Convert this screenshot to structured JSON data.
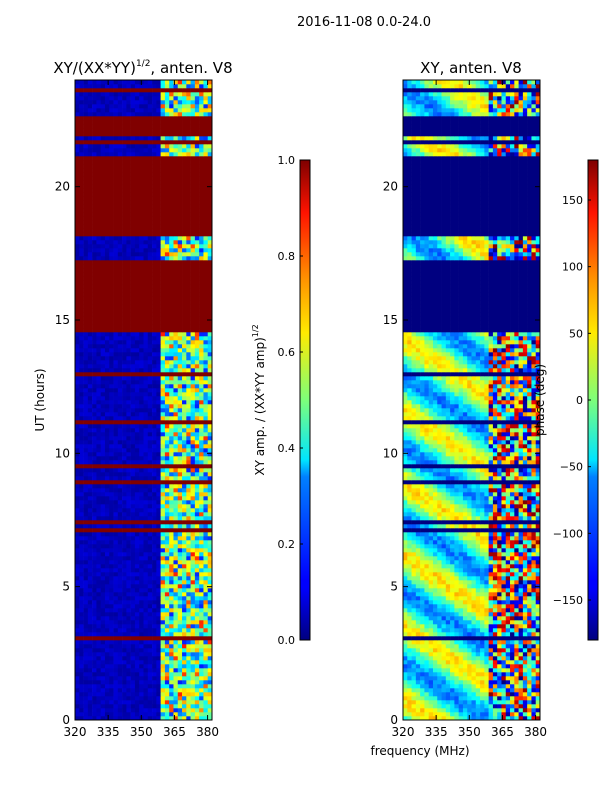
{
  "figure": {
    "suptitle": "2016-11-08 0.0-24.0",
    "shared_xlabel": "frequency (MHz)"
  },
  "chart_data": [
    {
      "type": "heatmap",
      "title": "XY/(XX*YY)^{1/2}, anten. V8",
      "title_main": "XY/(XX*YY)",
      "title_sup": "1/2",
      "title_tail": ", anten. V8",
      "xlabel": "frequency (MHz)",
      "ylabel": "UT (hours)",
      "xlim": [
        320,
        382
      ],
      "ylim": [
        0,
        24
      ],
      "xticks": [
        320,
        335,
        350,
        365,
        380
      ],
      "yticks": [
        0,
        5,
        10,
        15,
        20
      ],
      "colormap": "jet",
      "colorbar": {
        "label": "XY amp. / (XX*YY amp)^{1/2}",
        "label_main": "XY amp. / (XX*YY amp)",
        "label_sup": "1/2",
        "range": [
          0.0,
          1.0
        ],
        "ticks": [
          0.0,
          0.2,
          0.4,
          0.6,
          0.8,
          1.0
        ],
        "tick_labels": [
          "0.0",
          "0.2",
          "0.4",
          "0.6",
          "0.8",
          "1.0"
        ]
      },
      "saturated_time_blocks_hours": [
        [
          14.5,
          17.3
        ],
        [
          18.2,
          21.2
        ],
        [
          21.9,
          22.6
        ]
      ],
      "active_frequency_band_mhz": [
        359,
        382
      ]
    },
    {
      "type": "heatmap",
      "title": "XY, anten. V8",
      "xlabel": "frequency (MHz)",
      "ylabel": "",
      "xlim": [
        320,
        382
      ],
      "ylim": [
        0,
        24
      ],
      "xticks": [
        320,
        335,
        350,
        365,
        380
      ],
      "yticks": [
        0,
        5,
        10,
        15,
        20
      ],
      "colormap": "jet",
      "colorbar": {
        "label": "phase (deg)",
        "range": [
          -180,
          180
        ],
        "ticks": [
          -150,
          -100,
          -50,
          0,
          50,
          100,
          150
        ],
        "tick_labels": [
          "−150",
          "−100",
          "−50",
          "0",
          "50",
          "100",
          "150"
        ]
      },
      "blank_time_blocks_hours": [
        [
          14.5,
          17.3
        ],
        [
          18.2,
          21.2
        ],
        [
          21.9,
          22.6
        ]
      ]
    }
  ],
  "colors": {
    "jet_darkblue": "#00007f",
    "jet_darkred": "#7f0000"
  }
}
